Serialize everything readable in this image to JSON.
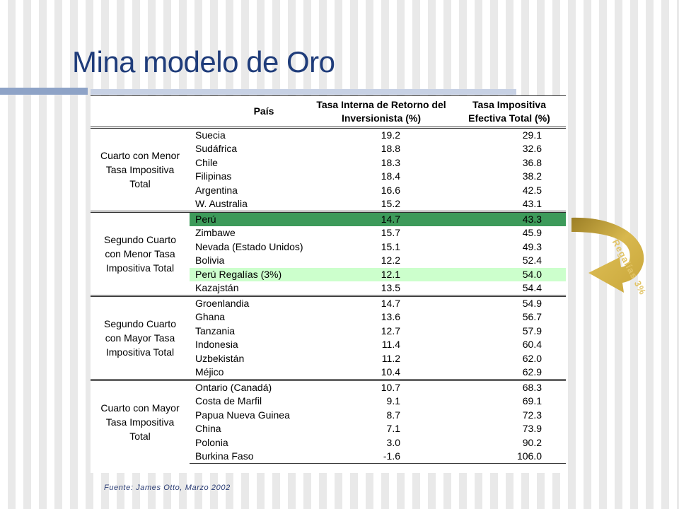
{
  "slide": {
    "title": "Mina modelo de Oro",
    "source": "Fuente: James Otto, Marzo 2002",
    "royalty_label": "Regalías 3%"
  },
  "colors": {
    "title": "#1f3c7a",
    "highlight_dark": "#3d9a5a",
    "highlight_light": "#ccffcc",
    "arrow_gold": "#c9a63a"
  },
  "table": {
    "headers": {
      "country": "País",
      "irr_line1": "Tasa Interna de Retorno del",
      "irr_line2": "Inversionista (%)",
      "tax_line1": "Tasa Impositiva",
      "tax_line2": "Efectiva Total (%)"
    },
    "groups": [
      {
        "label_lines": [
          "Cuarto con Menor",
          "Tasa Impositiva",
          "Total"
        ],
        "rows": [
          {
            "country": "Suecia",
            "irr": "19.2",
            "tax": "29.1"
          },
          {
            "country": "Sudáfrica",
            "irr": "18.8",
            "tax": "32.6"
          },
          {
            "country": "Chile",
            "irr": "18.3",
            "tax": "36.8"
          },
          {
            "country": "Filipinas",
            "irr": "18.4",
            "tax": "38.2"
          },
          {
            "country": "Argentina",
            "irr": "16.6",
            "tax": "42.5"
          },
          {
            "country": "W. Australia",
            "irr": "15.2",
            "tax": "43.1"
          }
        ]
      },
      {
        "label_lines": [
          "Segundo Cuarto",
          "con Menor Tasa",
          "Impositiva Total"
        ],
        "rows": [
          {
            "country": "Perú",
            "irr": "14.7",
            "tax": "43.3"
          },
          {
            "country": "Zimbawe",
            "irr": "15.7",
            "tax": "45.9"
          },
          {
            "country": "Nevada (Estado Unidos)",
            "irr": "15.1",
            "tax": "49.3"
          },
          {
            "country": "Bolivia",
            "irr": "12.2",
            "tax": "52.4"
          },
          {
            "country": "Perú Regalías (3%)",
            "irr": "12.1",
            "tax": "54.0"
          },
          {
            "country": "Kazajstán",
            "irr": "13.5",
            "tax": "54.4"
          }
        ]
      },
      {
        "label_lines": [
          "Segundo Cuarto",
          "con Mayor Tasa",
          "Impositiva Total"
        ],
        "rows": [
          {
            "country": "Groenlandia",
            "irr": "14.7",
            "tax": "54.9"
          },
          {
            "country": "Ghana",
            "irr": "13.6",
            "tax": "56.7"
          },
          {
            "country": "Tanzania",
            "irr": "12.7",
            "tax": "57.9"
          },
          {
            "country": "Indonesia",
            "irr": "11.4",
            "tax": "60.4"
          },
          {
            "country": "Uzbekistán",
            "irr": "11.2",
            "tax": "62.0"
          },
          {
            "country": "Méjico",
            "irr": "10.4",
            "tax": "62.9"
          }
        ]
      },
      {
        "label_lines": [
          "Cuarto con Mayor",
          "Tasa Impositiva",
          "Total"
        ],
        "rows": [
          {
            "country": "Ontario (Canadá)",
            "irr": "10.7",
            "tax": "68.3"
          },
          {
            "country": "Costa de Marfil",
            "irr": "9.1",
            "tax": "69.1"
          },
          {
            "country": "Papua Nueva Guinea",
            "irr": "8.7",
            "tax": "72.3"
          },
          {
            "country": "China",
            "irr": "7.1",
            "tax": "73.9"
          },
          {
            "country": "Polonia",
            "irr": "3.0",
            "tax": "90.2"
          },
          {
            "country": "Burkina Faso",
            "irr": "-1.6",
            "tax": "106.0"
          }
        ]
      }
    ]
  }
}
